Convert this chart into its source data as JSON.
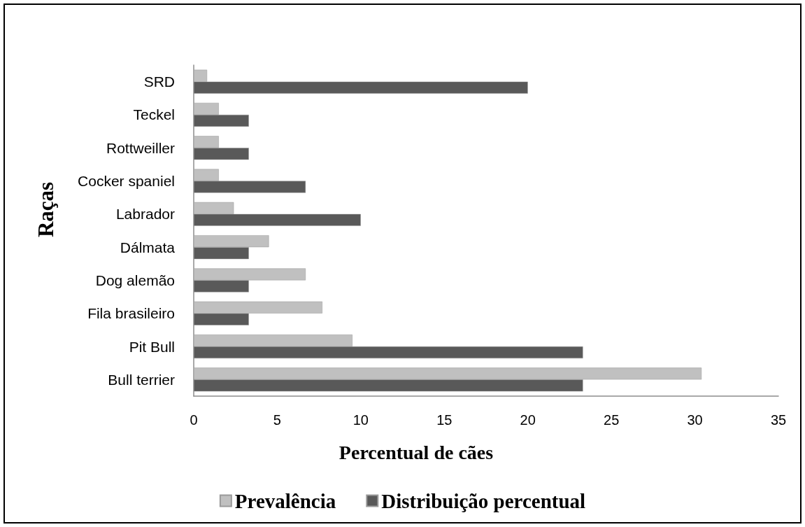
{
  "chart_data": {
    "type": "bar",
    "orientation": "horizontal",
    "xlabel": "Percentual de cães",
    "ylabel": "Raças",
    "categories": [
      "SRD",
      "Teckel",
      "Rottweiller",
      "Cocker spaniel",
      "Labrador",
      "Dálmata",
      "Dog alemão",
      "Fila brasileiro",
      "Pit Bull",
      "Bull terrier"
    ],
    "series": [
      {
        "name": "Prevalência",
        "color": "#c0c0c0",
        "values": [
          0.8,
          1.5,
          1.5,
          1.5,
          2.4,
          4.5,
          6.7,
          7.7,
          9.5,
          30.4
        ]
      },
      {
        "name": "Distribuição percentual",
        "color": "#595959",
        "values": [
          20.0,
          3.3,
          3.3,
          6.7,
          10.0,
          3.3,
          3.3,
          3.3,
          23.3,
          23.3
        ]
      }
    ],
    "xlim": [
      0,
      35
    ],
    "xticks": [
      0,
      5,
      10,
      15,
      20,
      25,
      30,
      35
    ],
    "grid": false,
    "legend": "bottom"
  }
}
